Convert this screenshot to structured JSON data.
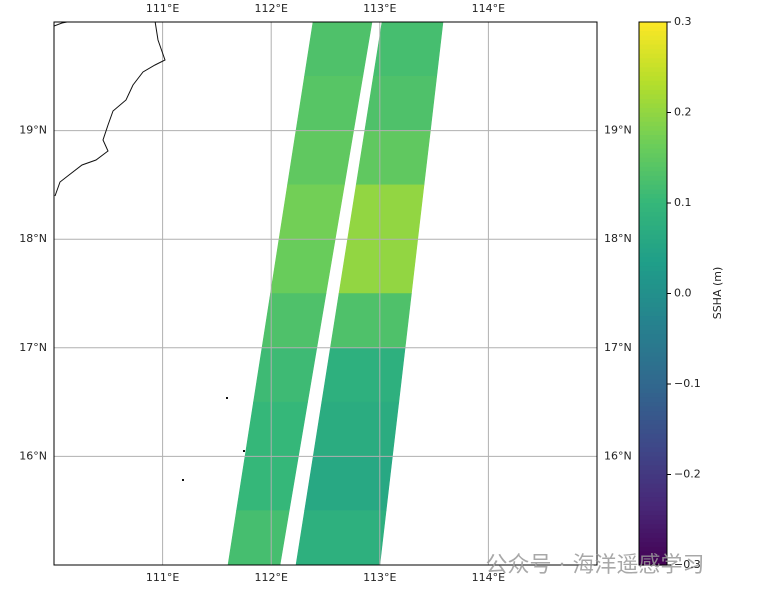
{
  "chart_data": {
    "type": "swath-map",
    "xlim": [
      110,
      115
    ],
    "ylim": [
      15,
      20
    ],
    "xticks": [
      {
        "value": 111,
        "label": "111°E"
      },
      {
        "value": 112,
        "label": "112°E"
      },
      {
        "value": 113,
        "label": "113°E"
      },
      {
        "value": 114,
        "label": "114°E"
      }
    ],
    "yticks": [
      {
        "value": 16,
        "label": "16°N"
      },
      {
        "value": 17,
        "label": "17°N"
      },
      {
        "value": 18,
        "label": "18°N"
      },
      {
        "value": 19,
        "label": "19°N"
      }
    ],
    "grid": true,
    "cmap": "viridis",
    "clim": [
      -0.3,
      0.3
    ],
    "cticks": [
      {
        "value": -0.3,
        "label": "−0.3"
      },
      {
        "value": -0.2,
        "label": "−0.2"
      },
      {
        "value": -0.1,
        "label": "−0.1"
      },
      {
        "value": 0,
        "label": "0.0"
      },
      0.1,
      0.2,
      0.3
    ],
    "colorbar_label": "SSHA (m)",
    "lat_edges": [
      20,
      19.5,
      19,
      18.5,
      18,
      17.5,
      17,
      16.5,
      16,
      15.5,
      15
    ],
    "swaths": [
      {
        "lon_top": [
          112.385,
          112.928
        ],
        "lon_bottom": [
          111.602,
          112.081
        ],
        "values": [
          0.13,
          0.14,
          0.15,
          0.17,
          0.16,
          0.13,
          0.11,
          0.1,
          0.1,
          0.12
        ]
      },
      {
        "lon_top": [
          113.02,
          113.582
        ],
        "lon_bottom": [
          112.228,
          113.0
        ],
        "values": [
          0.12,
          0.13,
          0.15,
          0.2,
          0.2,
          0.13,
          0.08,
          0.07,
          0.06,
          0.08
        ]
      }
    ],
    "watermark": "公众号 · 海洋遥感学习"
  }
}
